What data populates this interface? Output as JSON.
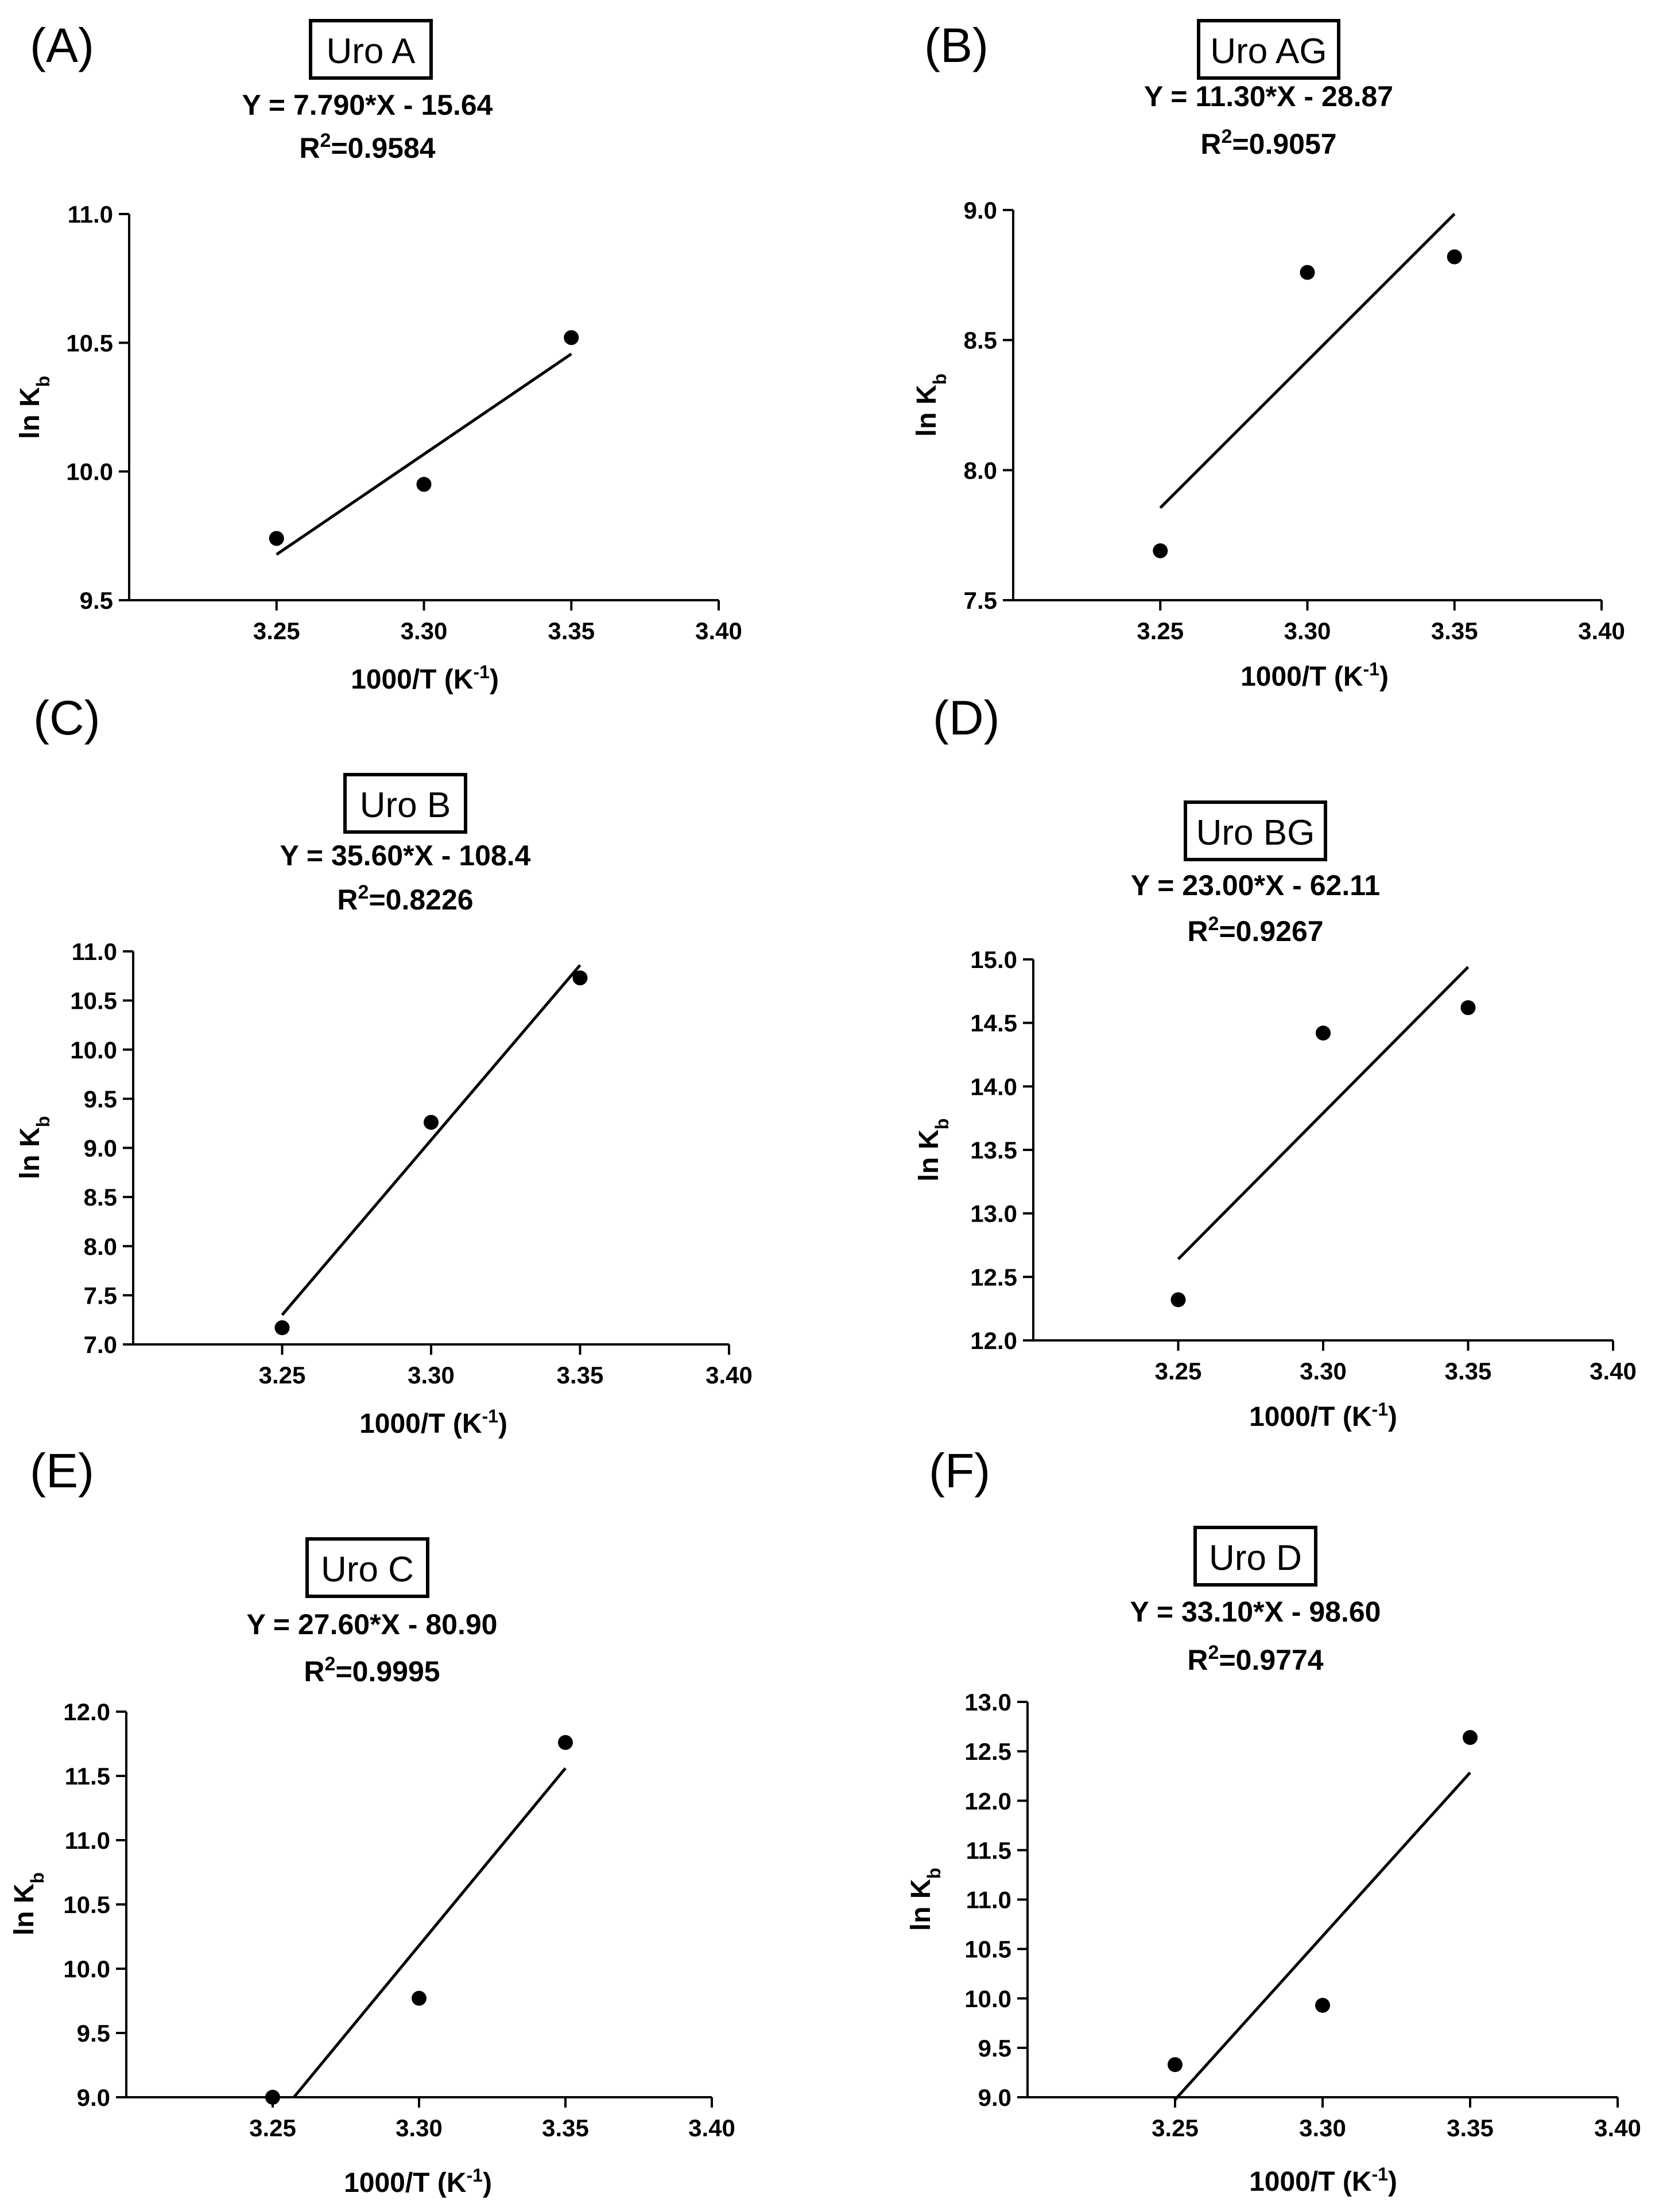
{
  "chart_data": [
    {
      "type": "scatter",
      "panel": "(A)",
      "title": "Uro A",
      "equation": "Y = 7.790*X - 15.64",
      "r2_label": "R",
      "r2_sup": "2",
      "r2_value": "=0.9584",
      "xlabel": "1000/T (K",
      "xlabel_sup": "-1",
      "xlabel_end": ")",
      "ylabel": "ln K",
      "ylabel_sub": "b",
      "x": [
        3.25,
        3.3,
        3.35
      ],
      "y": [
        9.74,
        9.95,
        10.52
      ],
      "fit": {
        "slope": 7.79,
        "intercept": -15.64,
        "x": [
          3.25,
          3.35
        ]
      },
      "xlim": [
        3.2,
        3.4
      ],
      "ylim": [
        9.5,
        11.0
      ],
      "xticks": [
        3.25,
        3.3,
        3.35,
        3.4
      ],
      "xtick_labels": [
        "3.25",
        "3.30",
        "3.35",
        "3.40"
      ],
      "yticks": [
        9.5,
        10.0,
        10.5,
        11.0
      ],
      "ytick_labels": [
        "9.5",
        "10.0",
        "10.5",
        "11.0"
      ]
    },
    {
      "type": "scatter",
      "panel": "(B)",
      "title": "Uro AG",
      "equation": "Y = 11.30*X - 28.87",
      "r2_label": "R",
      "r2_sup": "2",
      "r2_value": "=0.9057",
      "xlabel": "1000/T (K",
      "xlabel_sup": "-1",
      "xlabel_end": ")",
      "ylabel": "ln K",
      "ylabel_sub": "b",
      "x": [
        3.25,
        3.3,
        3.35
      ],
      "y": [
        7.69,
        8.76,
        8.82
      ],
      "fit": {
        "slope": 11.3,
        "intercept": -28.87,
        "x": [
          3.25,
          3.35
        ]
      },
      "xlim": [
        3.2,
        3.4
      ],
      "ylim": [
        7.5,
        9.0
      ],
      "xticks": [
        3.25,
        3.3,
        3.35,
        3.4
      ],
      "xtick_labels": [
        "3.25",
        "3.30",
        "3.35",
        "3.40"
      ],
      "yticks": [
        7.5,
        8.0,
        8.5,
        9.0
      ],
      "ytick_labels": [
        "7.5",
        "8.0",
        "8.5",
        "9.0"
      ]
    },
    {
      "type": "scatter",
      "panel": "(C)",
      "title": "Uro B",
      "equation": "Y = 35.60*X - 108.4",
      "r2_label": "R",
      "r2_sup": "2",
      "r2_value": "=0.8226",
      "xlabel": "1000/T (K",
      "xlabel_sup": "-1",
      "xlabel_end": ")",
      "ylabel": "ln K",
      "ylabel_sub": "b",
      "x": [
        3.25,
        3.3,
        3.35
      ],
      "y": [
        7.17,
        9.26,
        10.73
      ],
      "fit": {
        "slope": 35.6,
        "intercept": -108.4,
        "x": [
          3.25,
          3.35
        ]
      },
      "xlim": [
        3.2,
        3.4
      ],
      "ylim": [
        7.0,
        11.0
      ],
      "xticks": [
        3.25,
        3.3,
        3.35,
        3.4
      ],
      "xtick_labels": [
        "3.25",
        "3.30",
        "3.35",
        "3.40"
      ],
      "yticks": [
        7.0,
        7.5,
        8.0,
        8.5,
        9.0,
        9.5,
        10.0,
        10.5,
        11.0
      ],
      "ytick_labels": [
        "7.0",
        "7.5",
        "8.0",
        "8.5",
        "9.0",
        "9.5",
        "10.0",
        "10.5",
        "11.0"
      ]
    },
    {
      "type": "scatter",
      "panel": "(D)",
      "title": "Uro BG",
      "equation": "Y = 23.00*X - 62.11",
      "r2_label": "R",
      "r2_sup": "2",
      "r2_value": "=0.9267",
      "xlabel": "1000/T (K",
      "xlabel_sup": "-1",
      "xlabel_end": ")",
      "ylabel": "ln K",
      "ylabel_sub": "b",
      "x": [
        3.25,
        3.3,
        3.35
      ],
      "y": [
        12.32,
        14.42,
        14.62
      ],
      "fit": {
        "slope": 23.0,
        "intercept": -62.11,
        "x": [
          3.25,
          3.35
        ]
      },
      "xlim": [
        3.2,
        3.4
      ],
      "ylim": [
        12.0,
        15.0
      ],
      "xticks": [
        3.25,
        3.3,
        3.35,
        3.4
      ],
      "xtick_labels": [
        "3.25",
        "3.30",
        "3.35",
        "3.40"
      ],
      "yticks": [
        12.0,
        12.5,
        13.0,
        13.5,
        14.0,
        14.5,
        15.0
      ],
      "ytick_labels": [
        "12.0",
        "12.5",
        "13.0",
        "13.5",
        "14.0",
        "14.5",
        "15.0"
      ]
    },
    {
      "type": "scatter",
      "panel": "(E)",
      "title": "Uro C",
      "equation": "Y = 27.60*X - 80.90",
      "r2_label": "R",
      "r2_sup": "2",
      "r2_value": "=0.9995",
      "xlabel": "1000/T (K",
      "xlabel_sup": "-1",
      "xlabel_end": ")",
      "ylabel": "ln K",
      "ylabel_sub": "b",
      "x": [
        3.25,
        3.3,
        3.35
      ],
      "y": [
        9.0,
        9.77,
        11.76
      ],
      "fit": {
        "slope": 27.6,
        "intercept": -80.9,
        "x": [
          3.2572,
          3.35
        ]
      },
      "xlim": [
        3.2,
        3.4
      ],
      "ylim": [
        9.0,
        12.0
      ],
      "xticks": [
        3.25,
        3.3,
        3.35,
        3.4
      ],
      "xtick_labels": [
        "3.25",
        "3.30",
        "3.35",
        "3.40"
      ],
      "yticks": [
        9.0,
        9.5,
        10.0,
        10.5,
        11.0,
        11.5,
        12.0
      ],
      "ytick_labels": [
        "9.0",
        "9.5",
        "10.0",
        "10.5",
        "11.0",
        "11.5",
        "12.0"
      ]
    },
    {
      "type": "scatter",
      "panel": "(F)",
      "title": "Uro D",
      "equation": "Y = 33.10*X - 98.60",
      "r2_label": "R",
      "r2_sup": "2",
      "r2_value": "=0.9774",
      "xlabel": "1000/T (K",
      "xlabel_sup": "-1",
      "xlabel_end": ")",
      "ylabel": "ln K",
      "ylabel_sub": "b",
      "x": [
        3.25,
        3.3,
        3.35
      ],
      "y": [
        9.33,
        9.93,
        12.64
      ],
      "fit": {
        "slope": 33.1,
        "intercept": -98.6,
        "x": [
          3.25,
          3.35
        ]
      },
      "xlim": [
        3.2,
        3.4
      ],
      "ylim": [
        9.0,
        13.0
      ],
      "xticks": [
        3.25,
        3.3,
        3.35,
        3.4
      ],
      "xtick_labels": [
        "3.25",
        "3.30",
        "3.35",
        "3.40"
      ],
      "yticks": [
        9.0,
        9.5,
        10.0,
        10.5,
        11.0,
        11.5,
        12.0,
        12.5,
        13.0
      ],
      "ytick_labels": [
        "9.0",
        "9.5",
        "10.0",
        "10.5",
        "11.0",
        "11.5",
        "12.0",
        "12.5",
        "13.0"
      ]
    }
  ]
}
